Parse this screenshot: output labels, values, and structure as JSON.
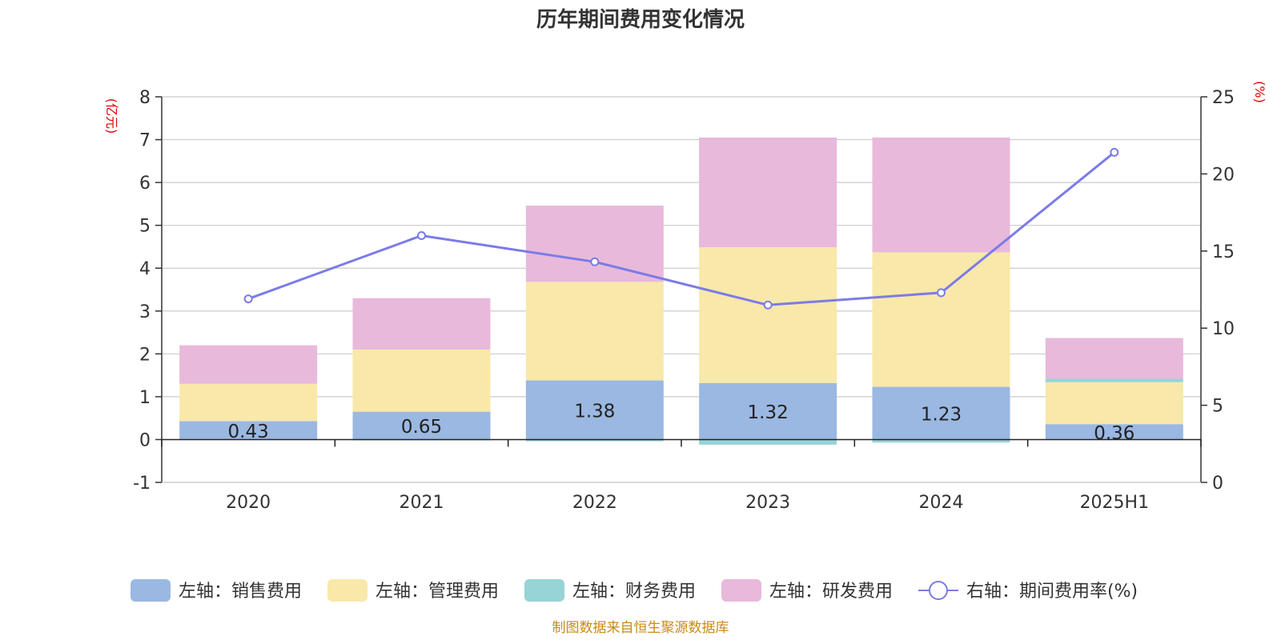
{
  "chart_data": {
    "type": "bar",
    "title": "历年期间费用变化情况",
    "categories": [
      "2020",
      "2021",
      "2022",
      "2023",
      "2024",
      "2025H1"
    ],
    "y_left": {
      "unit": "(亿元)",
      "range": [
        -1,
        8
      ],
      "ticks": [
        "-1",
        "0",
        "1",
        "2",
        "3",
        "4",
        "5",
        "6",
        "7",
        "8"
      ]
    },
    "y_right": {
      "unit": "(%)",
      "range": [
        0,
        25
      ],
      "ticks": [
        "0",
        "5",
        "10",
        "15",
        "20",
        "25"
      ]
    },
    "series": [
      {
        "name": "左轴：销售费用",
        "type": "bar",
        "axis": "left",
        "color": "#9bb8e2",
        "values": [
          0.43,
          0.65,
          1.38,
          1.32,
          1.23,
          0.36
        ],
        "labels": [
          "0.43",
          "0.65",
          "1.38",
          "1.32",
          "1.23",
          "0.36"
        ]
      },
      {
        "name": "左轴：管理费用",
        "type": "bar",
        "axis": "left",
        "color": "#f8e8a9",
        "values": [
          0.87,
          1.45,
          2.3,
          3.17,
          3.14,
          0.98
        ]
      },
      {
        "name": "左轴：财务费用",
        "type": "bar",
        "axis": "left",
        "color": "#96d4d6",
        "values": [
          -0.01,
          -0.02,
          -0.04,
          -0.12,
          -0.07,
          0.08
        ]
      },
      {
        "name": "左轴：研发费用",
        "type": "bar",
        "axis": "left",
        "color": "#e8b9da",
        "values": [
          0.9,
          1.2,
          1.78,
          2.56,
          2.68,
          0.95
        ]
      },
      {
        "name": "右轴：期间费用率(%)",
        "type": "line",
        "axis": "right",
        "color": "#7b7be8",
        "values": [
          11.9,
          16.0,
          14.3,
          11.5,
          12.3,
          21.4
        ]
      }
    ],
    "grid": true,
    "legend": "bottom"
  },
  "source": "制图数据来自恒生聚源数据库"
}
